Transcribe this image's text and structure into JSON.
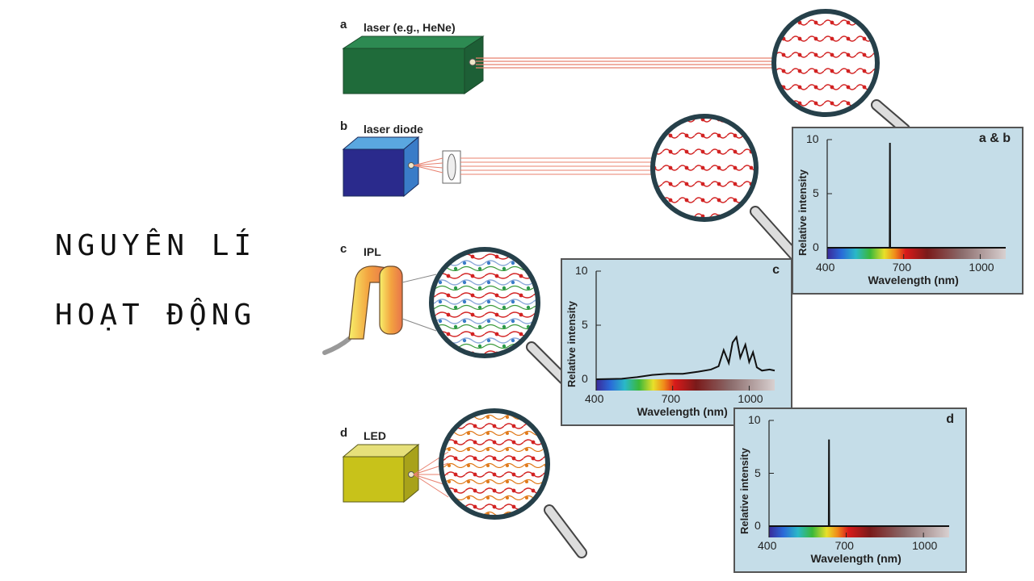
{
  "title": {
    "line1": "NGUYÊN LÍ",
    "line2": "HOẠT ĐỘNG"
  },
  "devices": [
    {
      "letter": "a",
      "label": "laser (e.g., HeNe)"
    },
    {
      "letter": "b",
      "label": "laser diode"
    },
    {
      "letter": "c",
      "label": "IPL"
    },
    {
      "letter": "d",
      "label": "LED"
    }
  ],
  "colors": {
    "chart_bg": "#c5dde8",
    "beam": "#e8806e",
    "wave": "#d22222",
    "laser_box": "#1f6b3a",
    "diode_box": "#2a2a8c",
    "led_box": "#c8c21a"
  },
  "chart_data": [
    {
      "type": "line",
      "title": "a & b",
      "xlabel": "Wavelength (nm)",
      "ylabel": "Relative intensity",
      "xticks": [
        "400",
        "700",
        "1000"
      ],
      "yticks": [
        "0",
        "5",
        "10"
      ],
      "xlim": [
        400,
        1100
      ],
      "ylim": [
        0,
        10
      ],
      "x": [
        400,
        645,
        646,
        647,
        1100
      ],
      "y": [
        0,
        0,
        9.7,
        0,
        0
      ]
    },
    {
      "type": "line",
      "title": "c",
      "xlabel": "Wavelength (nm)",
      "ylabel": "Relative intensity",
      "xticks": [
        "400",
        "700",
        "1000"
      ],
      "yticks": [
        "0",
        "5",
        "10"
      ],
      "xlim": [
        400,
        1100
      ],
      "ylim": [
        0,
        10
      ],
      "x": [
        400,
        500,
        560,
        620,
        680,
        740,
        800,
        850,
        880,
        900,
        920,
        935,
        950,
        965,
        985,
        1000,
        1015,
        1030,
        1050,
        1080,
        1100
      ],
      "y": [
        0,
        0.05,
        0.2,
        0.4,
        0.5,
        0.5,
        0.7,
        0.9,
        1.2,
        2.7,
        1.5,
        3.4,
        3.9,
        2.0,
        3.2,
        1.6,
        2.5,
        1.1,
        0.8,
        0.9,
        0.8
      ]
    },
    {
      "type": "line",
      "title": "d",
      "xlabel": "Wavelength (nm)",
      "ylabel": "Relative intensity",
      "xticks": [
        "400",
        "700",
        "1000"
      ],
      "yticks": [
        "0",
        "5",
        "10"
      ],
      "xlim": [
        400,
        1100
      ],
      "ylim": [
        0,
        10
      ],
      "x": [
        400,
        632,
        633,
        634,
        1100
      ],
      "y": [
        0,
        0,
        8.2,
        0,
        0
      ]
    }
  ]
}
